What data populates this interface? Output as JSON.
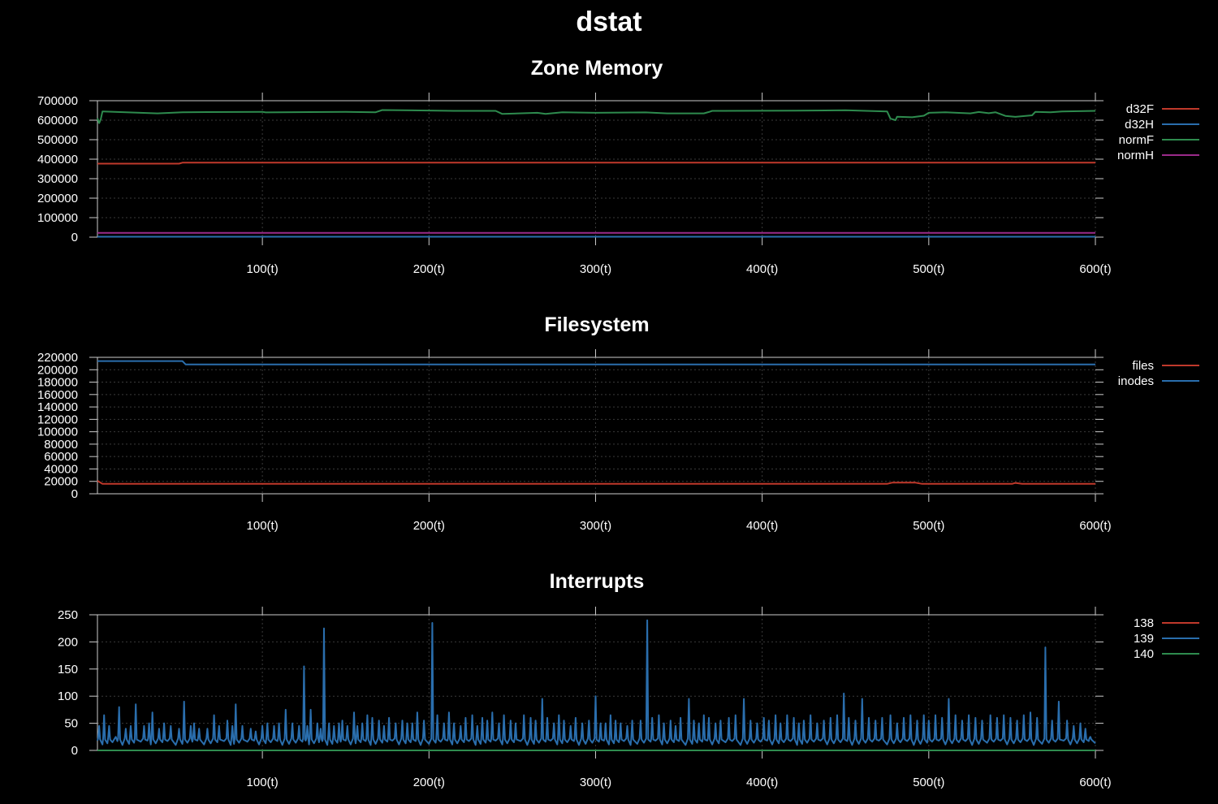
{
  "title": "dstat",
  "chart_data": [
    {
      "type": "line",
      "title": "Zone Memory",
      "xlim": [
        1,
        600
      ],
      "ylim": [
        0,
        700000
      ],
      "xticks": [
        100,
        200,
        300,
        400,
        500,
        600
      ],
      "xtick_labels": [
        "100(t)",
        "200(t)",
        "300(t)",
        "400(t)",
        "500(t)",
        "600(t)"
      ],
      "yticks": [
        0,
        100000,
        200000,
        300000,
        400000,
        500000,
        600000,
        700000
      ],
      "ytick_labels": [
        "0",
        "100000",
        "200000",
        "300000",
        "400000",
        "500000",
        "600000",
        "700000"
      ],
      "grid": true,
      "legend_position": "right",
      "series": [
        {
          "name": "d32F",
          "color": "#c0392b",
          "points": [
            [
              1,
              377000
            ],
            [
              50,
              377000
            ],
            [
              52,
              382000
            ],
            [
              600,
              382000
            ]
          ]
        },
        {
          "name": "d32H",
          "color": "#2a6ead",
          "points": [
            [
              1,
              2000
            ],
            [
              600,
              2000
            ]
          ]
        },
        {
          "name": "normF",
          "color": "#2e8b4e",
          "points": [
            [
              1,
              610000
            ],
            [
              2,
              585000
            ],
            [
              3,
              605000
            ],
            [
              4,
              645000
            ],
            [
              20,
              640000
            ],
            [
              37,
              635000
            ],
            [
              52,
              641000
            ],
            [
              100,
              643000
            ],
            [
              102,
              640000
            ],
            [
              150,
              643000
            ],
            [
              168,
              641000
            ],
            [
              172,
              652000
            ],
            [
              215,
              648000
            ],
            [
              240,
              648000
            ],
            [
              244,
              632000
            ],
            [
              265,
              638000
            ],
            [
              270,
              632000
            ],
            [
              280,
              641000
            ],
            [
              300,
              638000
            ],
            [
              330,
              640000
            ],
            [
              343,
              635000
            ],
            [
              365,
              635000
            ],
            [
              368,
              642000
            ],
            [
              370,
              648000
            ],
            [
              420,
              649000
            ],
            [
              450,
              651000
            ],
            [
              475,
              645000
            ],
            [
              477,
              608000
            ],
            [
              480,
              600000
            ],
            [
              481,
              618000
            ],
            [
              490,
              615000
            ],
            [
              497,
              623000
            ],
            [
              500,
              638000
            ],
            [
              510,
              641000
            ],
            [
              525,
              635000
            ],
            [
              530,
              642000
            ],
            [
              536,
              636000
            ],
            [
              540,
              641000
            ],
            [
              546,
              622000
            ],
            [
              552,
              617000
            ],
            [
              562,
              625000
            ],
            [
              564,
              643000
            ],
            [
              573,
              641000
            ],
            [
              580,
              645000
            ],
            [
              600,
              648000
            ]
          ]
        },
        {
          "name": "normH",
          "color": "#9b2b8a",
          "points": [
            [
              1,
              22000
            ],
            [
              600,
              22000
            ]
          ]
        }
      ]
    },
    {
      "type": "line",
      "title": "Filesystem",
      "xlim": [
        1,
        600
      ],
      "ylim": [
        0,
        220000
      ],
      "xticks": [
        100,
        200,
        300,
        400,
        500,
        600
      ],
      "xtick_labels": [
        "100(t)",
        "200(t)",
        "300(t)",
        "400(t)",
        "500(t)",
        "600(t)"
      ],
      "yticks": [
        0,
        20000,
        40000,
        60000,
        80000,
        100000,
        120000,
        140000,
        160000,
        180000,
        200000,
        220000
      ],
      "ytick_labels": [
        "0",
        "20000",
        "40000",
        "60000",
        "80000",
        "100000",
        "120000",
        "140000",
        "160000",
        "180000",
        "200000",
        "220000"
      ],
      "grid": true,
      "legend_position": "right",
      "series": [
        {
          "name": "files",
          "color": "#c0392b",
          "points": [
            [
              1,
              21000
            ],
            [
              4,
              16000
            ],
            [
              475,
              16000
            ],
            [
              478,
              18000
            ],
            [
              492,
              18000
            ],
            [
              496,
              16000
            ],
            [
              550,
              16000
            ],
            [
              552,
              17500
            ],
            [
              556,
              16000
            ],
            [
              600,
              16000
            ]
          ]
        },
        {
          "name": "inodes",
          "color": "#2a6ead",
          "points": [
            [
              1,
              214000
            ],
            [
              52,
              214000
            ],
            [
              54,
              208500
            ],
            [
              600,
              208500
            ]
          ]
        }
      ]
    },
    {
      "type": "line",
      "title": "Interrupts",
      "xlim": [
        1,
        600
      ],
      "ylim": [
        0,
        250
      ],
      "xticks": [
        100,
        200,
        300,
        400,
        500,
        600
      ],
      "xtick_labels": [
        "100(t)",
        "200(t)",
        "300(t)",
        "400(t)",
        "500(t)",
        "600(t)"
      ],
      "yticks": [
        0,
        50,
        100,
        150,
        200,
        250
      ],
      "ytick_labels": [
        "0",
        "50",
        "100",
        "150",
        "200",
        "250"
      ],
      "grid": true,
      "legend_position": "right",
      "series": [
        {
          "name": "138",
          "color": "#c0392b",
          "points": [
            [
              1,
              0
            ],
            [
              600,
              0
            ]
          ]
        },
        {
          "name": "139",
          "color": "#2a6ead",
          "baseline": 18,
          "spikes": [
            [
              2,
              45
            ],
            [
              5,
              65
            ],
            [
              8,
              45
            ],
            [
              12,
              25
            ],
            [
              14,
              80
            ],
            [
              18,
              40
            ],
            [
              21,
              45
            ],
            [
              24,
              85
            ],
            [
              29,
              45
            ],
            [
              32,
              50
            ],
            [
              34,
              70
            ],
            [
              38,
              40
            ],
            [
              41,
              50
            ],
            [
              45,
              45
            ],
            [
              50,
              40
            ],
            [
              53,
              90
            ],
            [
              57,
              45
            ],
            [
              59,
              50
            ],
            [
              62,
              40
            ],
            [
              67,
              40
            ],
            [
              71,
              65
            ],
            [
              74,
              45
            ],
            [
              79,
              55
            ],
            [
              82,
              45
            ],
            [
              84,
              85
            ],
            [
              88,
              45
            ],
            [
              93,
              40
            ],
            [
              96,
              35
            ],
            [
              100,
              45
            ],
            [
              103,
              50
            ],
            [
              107,
              45
            ],
            [
              110,
              50
            ],
            [
              114,
              75
            ],
            [
              118,
              50
            ],
            [
              122,
              45
            ],
            [
              125,
              155
            ],
            [
              127,
              45
            ],
            [
              129,
              75
            ],
            [
              133,
              50
            ],
            [
              135,
              40
            ],
            [
              137,
              225
            ],
            [
              140,
              50
            ],
            [
              143,
              45
            ],
            [
              146,
              50
            ],
            [
              148,
              55
            ],
            [
              151,
              45
            ],
            [
              155,
              70
            ],
            [
              157,
              45
            ],
            [
              160,
              50
            ],
            [
              163,
              65
            ],
            [
              166,
              60
            ],
            [
              170,
              55
            ],
            [
              173,
              45
            ],
            [
              176,
              60
            ],
            [
              180,
              50
            ],
            [
              184,
              55
            ],
            [
              187,
              50
            ],
            [
              190,
              50
            ],
            [
              193,
              70
            ],
            [
              197,
              55
            ],
            [
              202,
              235
            ],
            [
              205,
              65
            ],
            [
              209,
              50
            ],
            [
              212,
              70
            ],
            [
              215,
              50
            ],
            [
              219,
              45
            ],
            [
              222,
              60
            ],
            [
              226,
              65
            ],
            [
              229,
              45
            ],
            [
              232,
              60
            ],
            [
              235,
              55
            ],
            [
              238,
              70
            ],
            [
              242,
              50
            ],
            [
              245,
              65
            ],
            [
              249,
              55
            ],
            [
              252,
              50
            ],
            [
              257,
              65
            ],
            [
              261,
              60
            ],
            [
              264,
              55
            ],
            [
              268,
              95
            ],
            [
              271,
              60
            ],
            [
              275,
              50
            ],
            [
              278,
              65
            ],
            [
              281,
              55
            ],
            [
              285,
              45
            ],
            [
              288,
              60
            ],
            [
              292,
              50
            ],
            [
              296,
              55
            ],
            [
              300,
              100
            ],
            [
              303,
              50
            ],
            [
              306,
              50
            ],
            [
              309,
              65
            ],
            [
              312,
              55
            ],
            [
              315,
              50
            ],
            [
              319,
              45
            ],
            [
              322,
              55
            ],
            [
              327,
              55
            ],
            [
              331,
              240
            ],
            [
              334,
              60
            ],
            [
              338,
              65
            ],
            [
              341,
              50
            ],
            [
              345,
              55
            ],
            [
              348,
              45
            ],
            [
              351,
              60
            ],
            [
              356,
              95
            ],
            [
              359,
              55
            ],
            [
              362,
              50
            ],
            [
              365,
              65
            ],
            [
              368,
              60
            ],
            [
              372,
              50
            ],
            [
              375,
              55
            ],
            [
              380,
              60
            ],
            [
              384,
              65
            ],
            [
              389,
              95
            ],
            [
              393,
              55
            ],
            [
              397,
              50
            ],
            [
              401,
              60
            ],
            [
              404,
              55
            ],
            [
              408,
              65
            ],
            [
              411,
              50
            ],
            [
              415,
              65
            ],
            [
              419,
              60
            ],
            [
              422,
              50
            ],
            [
              425,
              55
            ],
            [
              429,
              65
            ],
            [
              433,
              50
            ],
            [
              437,
              55
            ],
            [
              441,
              60
            ],
            [
              445,
              65
            ],
            [
              449,
              105
            ],
            [
              452,
              60
            ],
            [
              456,
              55
            ],
            [
              460,
              95
            ],
            [
              464,
              60
            ],
            [
              468,
              55
            ],
            [
              472,
              60
            ],
            [
              477,
              65
            ],
            [
              481,
              50
            ],
            [
              485,
              60
            ],
            [
              489,
              65
            ],
            [
              493,
              55
            ],
            [
              497,
              65
            ],
            [
              500,
              55
            ],
            [
              504,
              65
            ],
            [
              508,
              60
            ],
            [
              512,
              95
            ],
            [
              516,
              65
            ],
            [
              520,
              55
            ],
            [
              524,
              65
            ],
            [
              528,
              60
            ],
            [
              532,
              55
            ],
            [
              537,
              65
            ],
            [
              541,
              60
            ],
            [
              545,
              65
            ],
            [
              549,
              60
            ],
            [
              553,
              55
            ],
            [
              557,
              65
            ],
            [
              561,
              70
            ],
            [
              565,
              60
            ],
            [
              570,
              190
            ],
            [
              574,
              55
            ],
            [
              578,
              90
            ],
            [
              583,
              55
            ],
            [
              587,
              45
            ],
            [
              591,
              50
            ],
            [
              594,
              40
            ],
            [
              597,
              25
            ]
          ]
        },
        {
          "name": "140",
          "color": "#2e8b4e",
          "points": [
            [
              1,
              0
            ],
            [
              600,
              0
            ]
          ]
        }
      ]
    }
  ]
}
